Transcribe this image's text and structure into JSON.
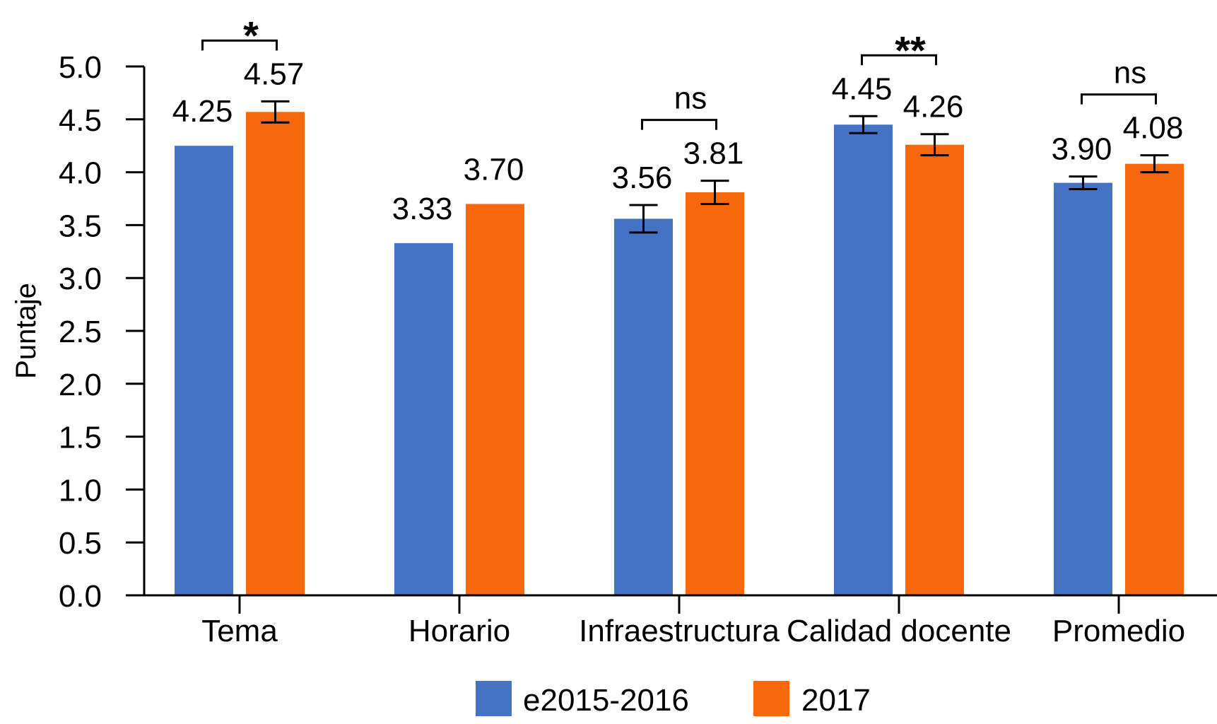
{
  "chart_data": {
    "type": "bar",
    "title": "",
    "xlabel": "",
    "ylabel": "Puntaje",
    "ylim": [
      0,
      5.0
    ],
    "yticks": [
      "0.0",
      "0.5",
      "1.0",
      "1.5",
      "2.0",
      "2.5",
      "3.0",
      "3.5",
      "4.0",
      "4.5",
      "5.0"
    ],
    "grid": false,
    "legend_position": "bottom-center",
    "categories": [
      "Tema",
      "Horario",
      "Infraestructura",
      "Calidad docente",
      "Promedio"
    ],
    "series": [
      {
        "name": "e2015-2016",
        "color": "#4472C4",
        "values": [
          4.25,
          3.33,
          3.56,
          4.45,
          3.9
        ],
        "labels": [
          "4.25",
          "3.33",
          "3.56",
          "4.45",
          "3.90"
        ],
        "error": [
          null,
          null,
          0.13,
          0.08,
          0.06
        ]
      },
      {
        "name": "2017",
        "color": "#F7670B",
        "values": [
          4.57,
          3.7,
          3.81,
          4.26,
          4.08
        ],
        "labels": [
          "4.57",
          "3.70",
          "3.81",
          "4.26",
          "4.08"
        ],
        "error": [
          0.1,
          null,
          0.11,
          0.1,
          0.08
        ]
      }
    ],
    "significance": [
      {
        "category": "Tema",
        "label": "*"
      },
      {
        "category": "Horario",
        "label": null
      },
      {
        "category": "Infraestructura",
        "label": "ns"
      },
      {
        "category": "Calidad docente",
        "label": "**"
      },
      {
        "category": "Promedio",
        "label": "ns"
      }
    ]
  }
}
